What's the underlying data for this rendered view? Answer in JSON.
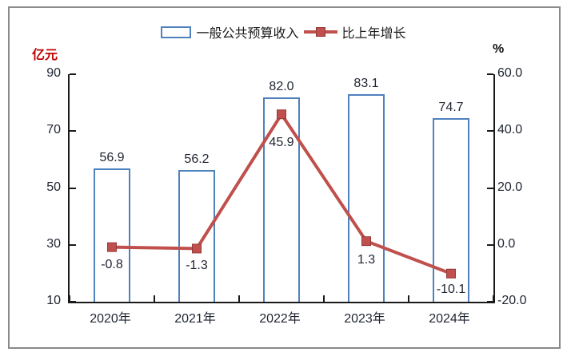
{
  "legend": {
    "bar_label": "一般公共预算收入",
    "line_label": "比上年增长"
  },
  "chart_data": {
    "type": "bar+line combo",
    "categories": [
      "2020年",
      "2021年",
      "2022年",
      "2023年",
      "2024年"
    ],
    "series": [
      {
        "name": "一般公共预算收入",
        "type": "bar",
        "axis": "left",
        "values": [
          56.9,
          56.2,
          82.0,
          83.1,
          74.7
        ],
        "labels": [
          "56.9",
          "56.2",
          "82.0",
          "83.1",
          "74.7"
        ]
      },
      {
        "name": "比上年增长",
        "type": "line",
        "axis": "right",
        "values": [
          -0.8,
          -1.3,
          45.9,
          1.3,
          -10.1
        ],
        "labels": [
          "-0.8",
          "-1.3",
          "45.9",
          "1.3",
          "-10.1"
        ],
        "label_dy": [
          13,
          13,
          27,
          15,
          11
        ]
      }
    ],
    "left_axis": {
      "title": "亿元",
      "title_color": "#C00000",
      "min": 10,
      "max": 90,
      "ticks": [
        90,
        70,
        50,
        30,
        10
      ],
      "tick_labels": [
        "90",
        "70",
        "50",
        "30",
        "10"
      ]
    },
    "right_axis": {
      "title": "%",
      "min": -20,
      "max": 60,
      "ticks": [
        60,
        40,
        20,
        0,
        -20
      ],
      "tick_labels": [
        "60.0",
        "40.0",
        "20.0",
        "0.0",
        "-20.0"
      ]
    },
    "legend_position": "top-center",
    "grid": false,
    "colors": {
      "bar_border": "#4F81BD",
      "line": "#C0504D",
      "marker_border": "#953735",
      "text": "#1f2430",
      "axis": "#1a1a1a",
      "frame_border": "#8a8a8a"
    }
  }
}
